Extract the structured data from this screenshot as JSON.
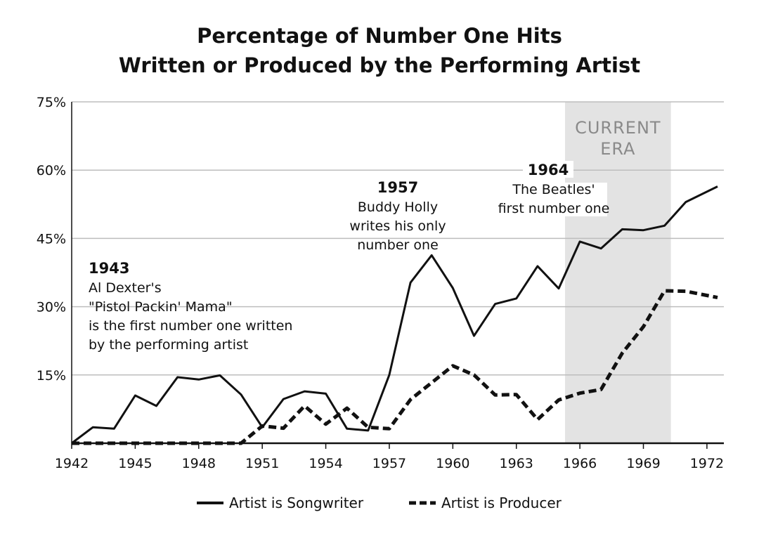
{
  "chart_data": {
    "type": "line",
    "title": [
      "Percentage of Number One Hits",
      "Written or Produced by the Performing Artist"
    ],
    "ylim": [
      0,
      75
    ],
    "xlim": [
      1942,
      1972.8
    ],
    "y_ticks": [
      "75%",
      "60%",
      "45%",
      "30%",
      "15%"
    ],
    "y_tick_values": [
      75,
      60,
      45,
      30,
      15
    ],
    "x_ticks": [
      "1942",
      "1945",
      "1948",
      "1951",
      "1954",
      "1957",
      "1960",
      "1963",
      "1966",
      "1969",
      "1972"
    ],
    "x_tick_values": [
      1942,
      1945,
      1948,
      1951,
      1954,
      1957,
      1960,
      1963,
      1966,
      1969,
      1972
    ],
    "grid": "horizontal",
    "shaded_region": {
      "x_start": 1965.3,
      "x_end": 1970.3,
      "label": [
        "CURRENT",
        "ERA"
      ],
      "color": "#e3e3e3"
    },
    "series": [
      {
        "name": "Artist is Songwriter",
        "style": "solid",
        "x": [
          1942,
          1943,
          1944,
          1945,
          1946,
          1947,
          1948,
          1949,
          1950,
          1951,
          1952,
          1953,
          1954,
          1955,
          1956,
          1957,
          1958,
          1959,
          1960,
          1961,
          1962,
          1963,
          1964,
          1965,
          1966,
          1967,
          1968,
          1969,
          1970,
          1971,
          1972.5
        ],
        "values": [
          0,
          3.5,
          3.2,
          10.5,
          8.2,
          14.5,
          14,
          14.9,
          10.7,
          3.5,
          9.7,
          11.4,
          10.9,
          3.2,
          2.8,
          15,
          35.3,
          41.3,
          34.1,
          23.6,
          30.6,
          31.8,
          38.9,
          34,
          44.3,
          42.8,
          47,
          46.8,
          47.8,
          53,
          56.4
        ]
      },
      {
        "name": "Artist is Producer",
        "style": "dashed",
        "x": [
          1942,
          1943,
          1944,
          1945,
          1946,
          1947,
          1948,
          1949,
          1950,
          1951,
          1952,
          1953,
          1954,
          1955,
          1956,
          1957,
          1958,
          1959,
          1960,
          1961,
          1962,
          1963,
          1964,
          1965,
          1966,
          1967,
          1968,
          1969,
          1970,
          1971,
          1972.5
        ],
        "values": [
          0,
          0,
          0,
          0,
          0,
          0,
          0,
          0,
          0,
          3.8,
          3.3,
          8.2,
          4.2,
          7.7,
          3.5,
          3.2,
          9.6,
          13.3,
          17,
          15,
          10.6,
          10.7,
          5.2,
          9.5,
          11,
          11.8,
          19.8,
          25.6,
          33.5,
          33.4,
          32
        ]
      }
    ],
    "annotations": [
      {
        "year": "1943",
        "lines": [
          "Al Dexter's",
          "\"Pistol Packin' Mama\"",
          "is the first number one written",
          "by the performing artist"
        ]
      },
      {
        "year": "1957",
        "lines": [
          "Buddy Holly",
          "writes his only",
          "number one"
        ]
      },
      {
        "year": "1964",
        "lines": [
          "The Beatles'",
          "first number one"
        ]
      }
    ],
    "legend": {
      "placement": "bottom-center"
    }
  }
}
